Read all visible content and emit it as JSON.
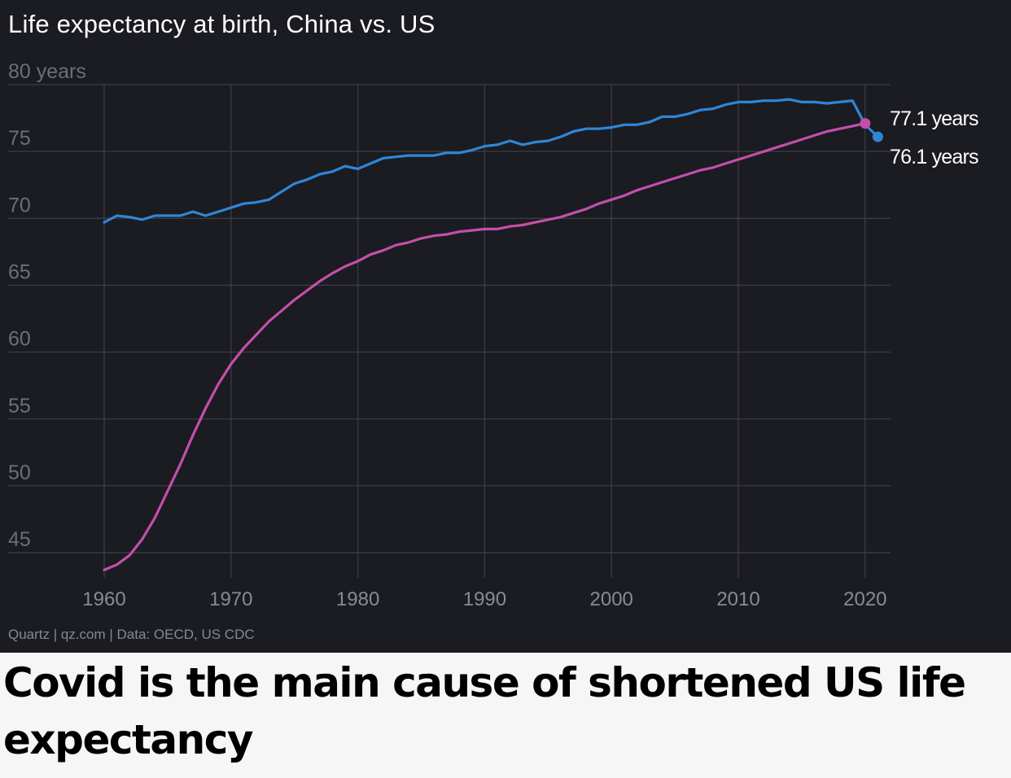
{
  "chart_title": "Life expectancy at birth, China vs. US",
  "source": "Quartz | qz.com | Data: OECD, US CDC",
  "headline": "Covid is the main cause of shortened US life expectancy",
  "chart_data": {
    "type": "line",
    "title": "Life expectancy at birth, China vs. US",
    "xlabel": "",
    "ylabel": "years",
    "xlim": [
      1960,
      2022
    ],
    "ylim": [
      43,
      80
    ],
    "grid": true,
    "x_ticks": [
      1960,
      1970,
      1980,
      1990,
      2000,
      2010,
      2020
    ],
    "x_tick_labels": [
      "1960",
      "1970",
      "1980",
      "1990",
      "2000",
      "2010",
      "2020"
    ],
    "y_ticks": [
      80,
      75,
      70,
      65,
      60,
      55,
      50,
      45
    ],
    "y_tick_labels": [
      "80 years",
      "75",
      "70",
      "65",
      "60",
      "55",
      "50",
      "45"
    ],
    "series": [
      {
        "name": "US",
        "color": "#2f86d6",
        "x": [
          1960,
          1961,
          1962,
          1963,
          1964,
          1965,
          1966,
          1967,
          1968,
          1969,
          1970,
          1971,
          1972,
          1973,
          1974,
          1975,
          1976,
          1977,
          1978,
          1979,
          1980,
          1981,
          1982,
          1983,
          1984,
          1985,
          1986,
          1987,
          1988,
          1989,
          1990,
          1991,
          1992,
          1993,
          1994,
          1995,
          1996,
          1997,
          1998,
          1999,
          2000,
          2001,
          2002,
          2003,
          2004,
          2005,
          2006,
          2007,
          2008,
          2009,
          2010,
          2011,
          2012,
          2013,
          2014,
          2015,
          2016,
          2017,
          2018,
          2019,
          2020,
          2021
        ],
        "values": [
          69.7,
          70.2,
          70.1,
          69.9,
          70.2,
          70.2,
          70.2,
          70.5,
          70.2,
          70.5,
          70.8,
          71.1,
          71.2,
          71.4,
          72.0,
          72.6,
          72.9,
          73.3,
          73.5,
          73.9,
          73.7,
          74.1,
          74.5,
          74.6,
          74.7,
          74.7,
          74.7,
          74.9,
          74.9,
          75.1,
          75.4,
          75.5,
          75.8,
          75.5,
          75.7,
          75.8,
          76.1,
          76.5,
          76.7,
          76.7,
          76.8,
          77.0,
          77.0,
          77.2,
          77.6,
          77.6,
          77.8,
          78.1,
          78.2,
          78.5,
          78.7,
          78.7,
          78.8,
          78.8,
          78.9,
          78.7,
          78.7,
          78.6,
          78.7,
          78.8,
          77.0,
          76.1
        ],
        "end_label": "76.1 years"
      },
      {
        "name": "China",
        "color": "#c44fa8",
        "x": [
          1960,
          1961,
          1962,
          1963,
          1964,
          1965,
          1966,
          1967,
          1968,
          1969,
          1970,
          1971,
          1972,
          1973,
          1974,
          1975,
          1976,
          1977,
          1978,
          1979,
          1980,
          1981,
          1982,
          1983,
          1984,
          1985,
          1986,
          1987,
          1988,
          1989,
          1990,
          1991,
          1992,
          1993,
          1994,
          1995,
          1996,
          1997,
          1998,
          1999,
          2000,
          2001,
          2002,
          2003,
          2004,
          2005,
          2006,
          2007,
          2008,
          2009,
          2010,
          2011,
          2012,
          2013,
          2014,
          2015,
          2016,
          2017,
          2018,
          2019,
          2020
        ],
        "values": [
          43.7,
          44.1,
          44.8,
          46.0,
          47.6,
          49.6,
          51.6,
          53.8,
          55.8,
          57.6,
          59.1,
          60.3,
          61.3,
          62.3,
          63.1,
          63.9,
          64.6,
          65.3,
          65.9,
          66.4,
          66.8,
          67.3,
          67.6,
          68.0,
          68.2,
          68.5,
          68.7,
          68.8,
          69.0,
          69.1,
          69.2,
          69.2,
          69.4,
          69.5,
          69.7,
          69.9,
          70.1,
          70.4,
          70.7,
          71.1,
          71.4,
          71.7,
          72.1,
          72.4,
          72.7,
          73.0,
          73.3,
          73.6,
          73.8,
          74.1,
          74.4,
          74.7,
          75.0,
          75.3,
          75.6,
          75.9,
          76.2,
          76.5,
          76.7,
          76.9,
          77.1
        ],
        "end_label": "77.1 years"
      }
    ]
  }
}
